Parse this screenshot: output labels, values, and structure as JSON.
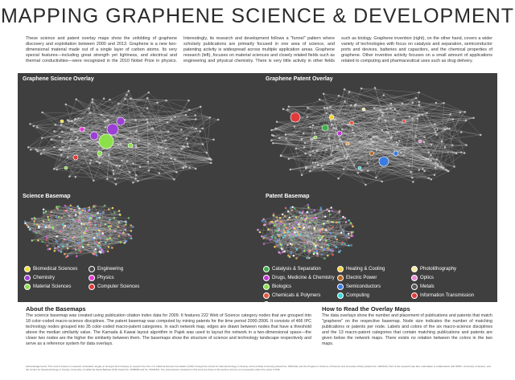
{
  "title": "MAPPING GRAPHENE SCIENCE & DEVELOPMENT",
  "intro": "These science and patent overlay maps show the unfolding of graphene discovery and exploitation between 2000 and 2013. Graphene is a new two-dimensional material made out of a single layer of carbon atoms. Its very special features—including great strength yet lightness, and electrical and thermal conductivities—were recognized in the 2010 Nobel Prize in physics. Interestingly, its research and development follows a \"funnel\" pattern where scholarly publications are primarily focused in one area of science, and patenting activity is widespread across multiple application areas. Graphene research (left), focuses on material sciences and closely related fields such as engineering and physical chemistry. There is very little activity in other fields such as biology. Graphene invention (right), on the other hand, covers a wider variety of technologies with focus on catalysis and separation, semiconductor ports and devices, batteries and capacitors, and the chemical properties of graphene. Other inventive activity focuses on a small amount of applications related to computing and pharmaceutical uses such as drug delivery.",
  "panels": {
    "science_overlay": "Graphene Science Overlay",
    "patent_overlay": "Graphene Patent Overlay",
    "science_basemap": "Science Basemap",
    "patent_basemap": "Patent Basemap"
  },
  "science_legend": [
    {
      "label": "Biomedical Sciences",
      "color": "#f3e23a"
    },
    {
      "label": "Engineering",
      "color": "#4a4a4a"
    },
    {
      "label": "Chemistry",
      "color": "#9b3fd6"
    },
    {
      "label": "Physics",
      "color": "#e23ad6"
    },
    {
      "label": "Material Sciences",
      "color": "#8be04a"
    },
    {
      "label": "Computer Sciences",
      "color": "#e23a3a"
    }
  ],
  "patent_legend": [
    {
      "label": "Catalysis & Separation",
      "color": "#3fae4a"
    },
    {
      "label": "Heating & Cooling",
      "color": "#f3d23a"
    },
    {
      "label": "Photolithography",
      "color": "#f6eaa0"
    },
    {
      "label": "Drugs, Medicine & Chemistry",
      "color": "#c33ad6"
    },
    {
      "label": "Electric Power",
      "color": "#b5651d"
    },
    {
      "label": "Optics",
      "color": "#e88ad6"
    },
    {
      "label": "Biologics",
      "color": "#8be04a"
    },
    {
      "label": "Semiconductors",
      "color": "#3a7be2"
    },
    {
      "label": "Metals",
      "color": "#5a5a5a"
    },
    {
      "label": "Chemicals & Polymers",
      "color": "#e25a3a"
    },
    {
      "label": "Computing",
      "color": "#3ad6d6"
    },
    {
      "label": "Information Transmission",
      "color": "#e23a3a"
    },
    {
      "label": "Laboratory Equipment",
      "color": "#f39a3a"
    }
  ],
  "basemaps": {
    "heading": "About the Basemaps",
    "text": "The science basemap was created using publication citation index data for 2009. It features 222 Web of Science category nodes that are grouped into 18 color-coded macro-science disciplines. The patent basemap was computed by mining patents for the time period 2000-2006. It consists of 466 IPC technology nodes grouped into 35 color-coded macro-patent categories. In each network map, edges are drawn between nodes that have a threshold above the median similarity value. The Kamada & Kawai layout algorithm in Pajek was used to layout the network in a two-dimensional space—the closer two nodes are the higher the similarity between them. The basemaps show the structure of science and technology landscape respectively and serve as a reference system for data overlays."
  },
  "howto": {
    "heading": "How to Read the Overlay Maps",
    "text": "The data overlays show the number and placement of publications and patents that match \"graphene\" on the respective basemap. Node size indicates the number of matching publications or patents per node. Labels and colors of the six macro-science disciplines and the 13 macro-patent categories that contain matching publications and patents are given below the network maps. There exists no relation between the colors in the two maps."
  },
  "acknowledgements": "Acknowledgements: This work is based on research undertaken largely at Georgia Tech drawing on support from the U.S. National Science Foundation (NSF) through the Center for Nanotechnology in Society, Arizona State University (Award No. 0531194) and the Program in Science of Science and Innovation Policy (Award No. 1064146). Part of the research was also undertaken in collaboration with SPRU, University of Sussex, and the Center for Nanotechnology in Society, University of California Santa Barbara (NSF Award No. 0938099 and No. 0531184). The observations contained in this work are those of the authors and do not necessarily reflect the views of NSF."
}
